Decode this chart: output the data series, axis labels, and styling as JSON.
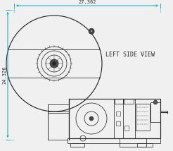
{
  "bg_color": "#f0f0f0",
  "line_color": "#2a2a2a",
  "dim_color": "#00aacc",
  "text_color": "#2a2a2a",
  "label_text": "LEFT SIDE VIEW",
  "dim_width_label": "27.362",
  "dim_height_label": "24.326",
  "figsize": [
    2.46,
    2.14
  ],
  "dpi": 100
}
